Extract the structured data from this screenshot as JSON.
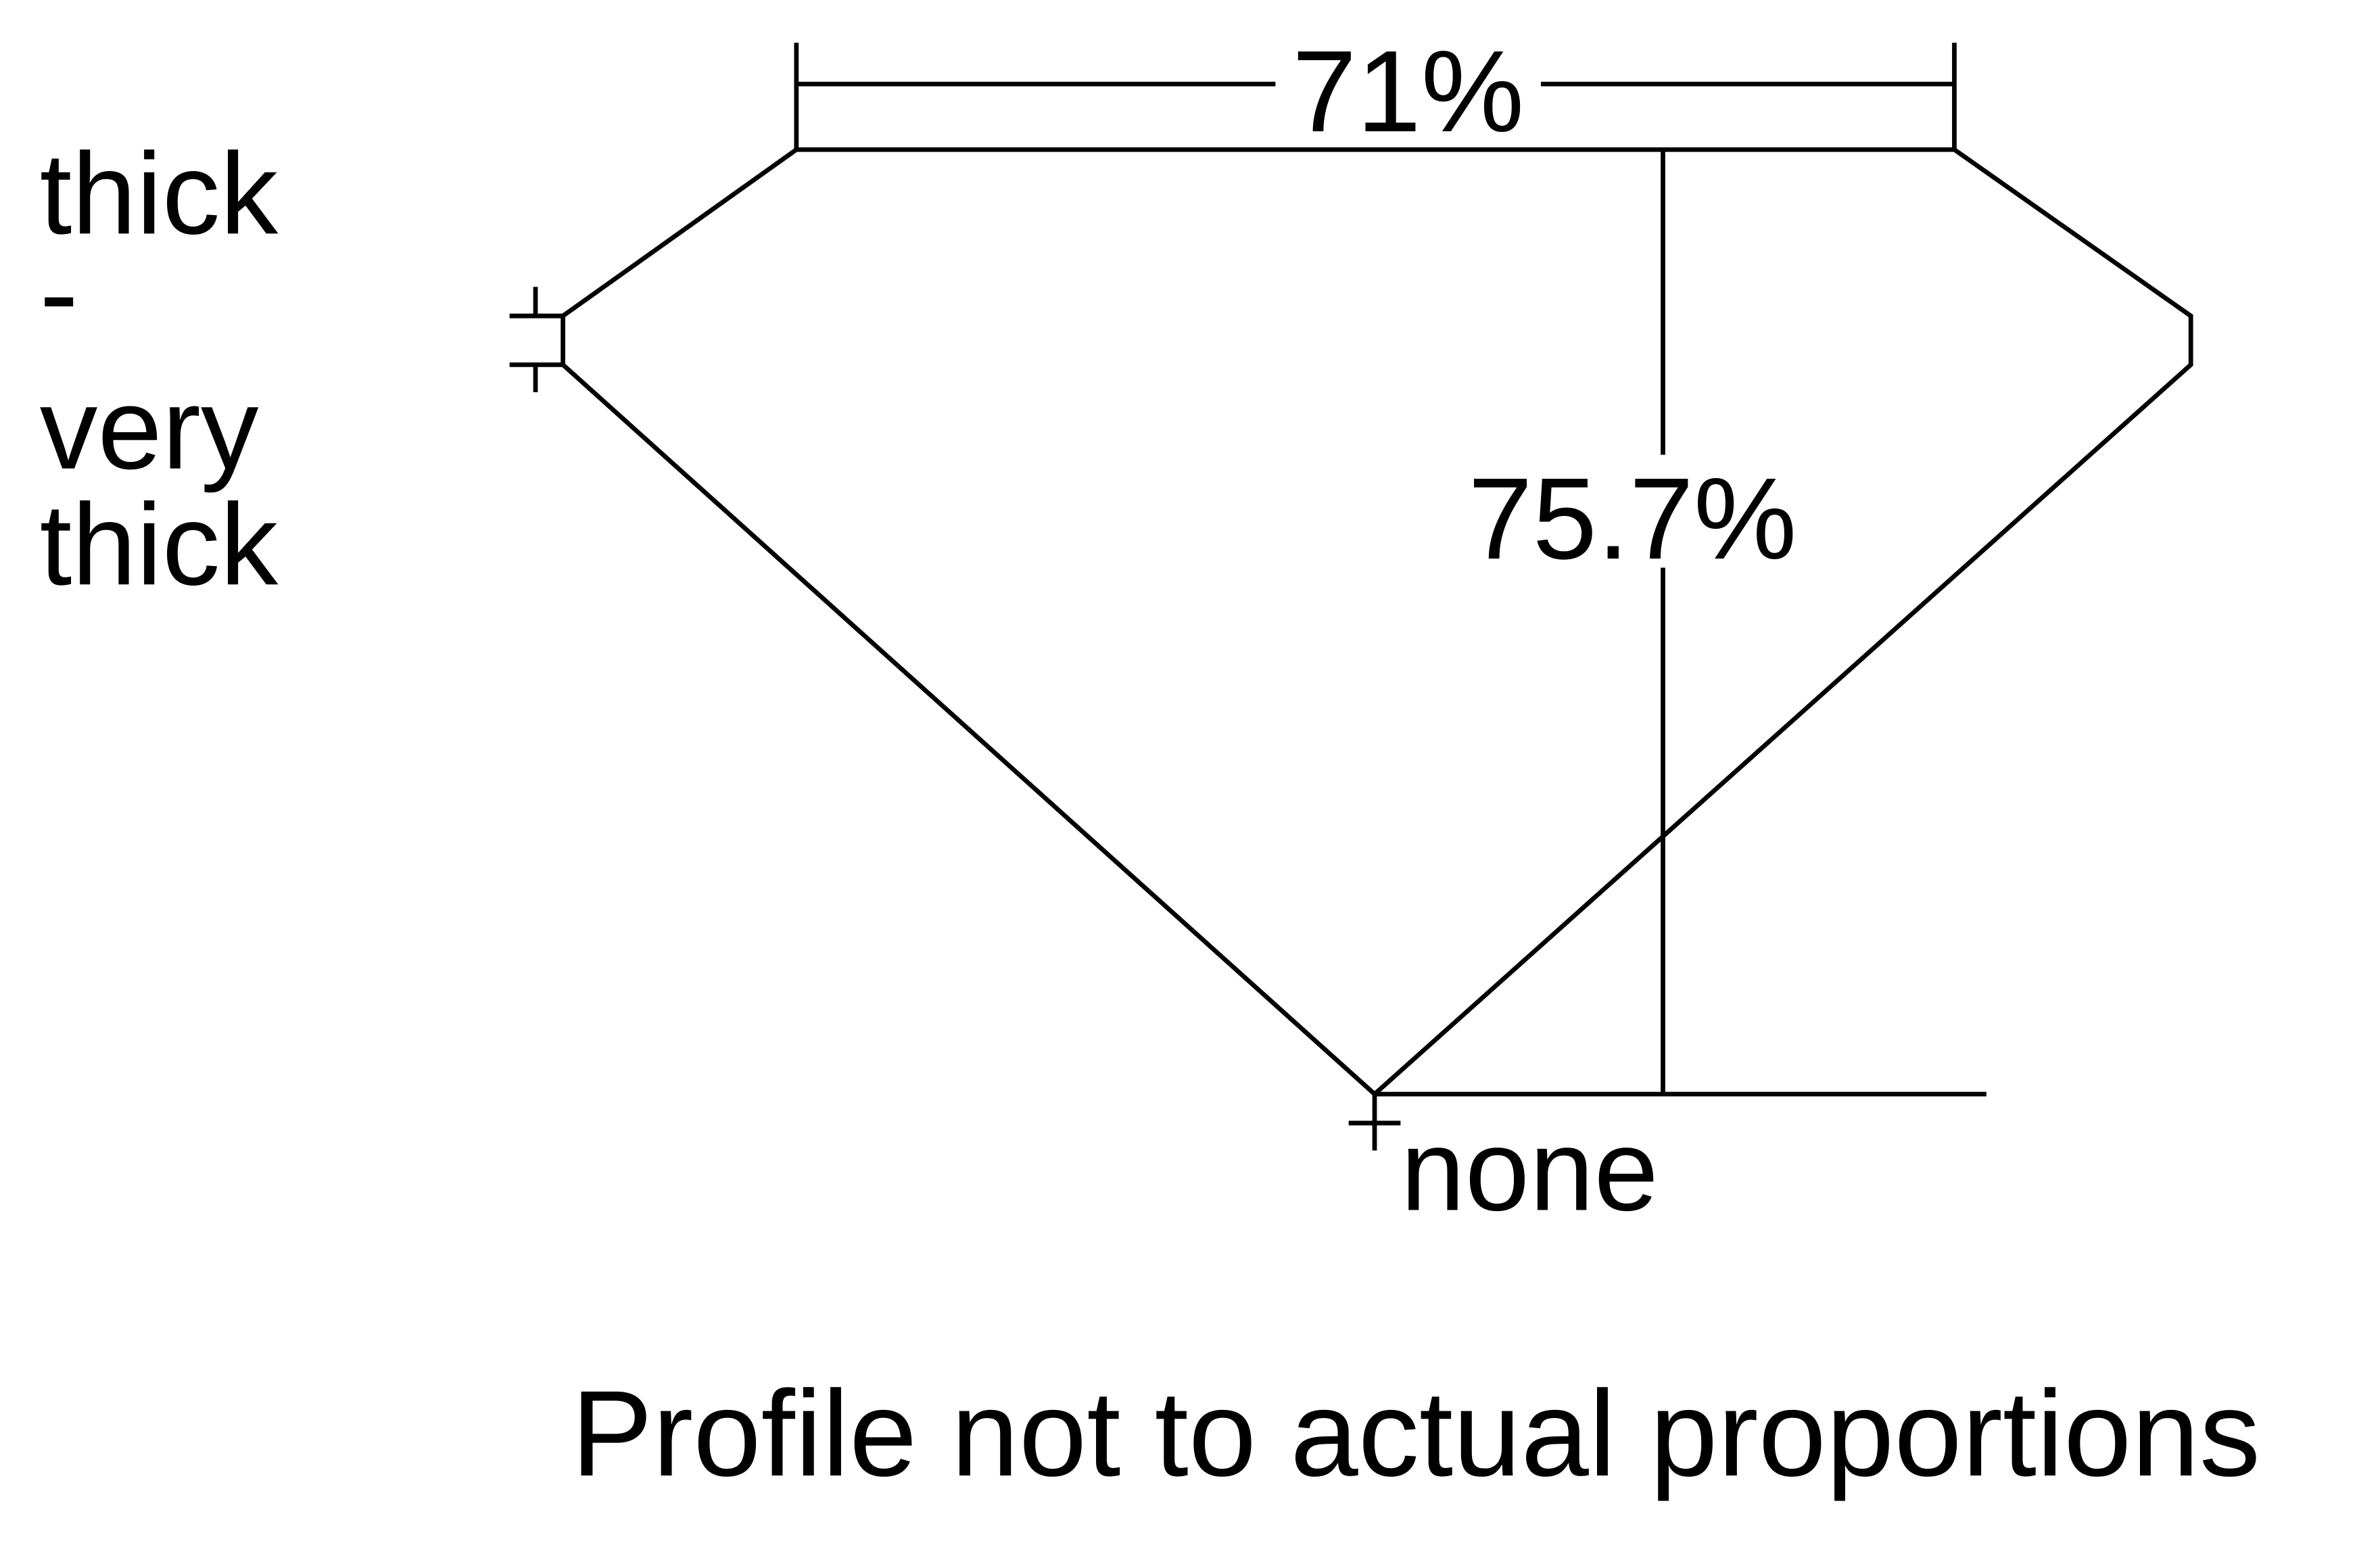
{
  "labels": {
    "width_pct": "71%",
    "height_pct": "75.7%",
    "girdle_line1": "thick",
    "girdle_line2": "-",
    "girdle_line3": "very",
    "girdle_line4": "thick",
    "culet": "none",
    "caption": "Profile not to actual proportions"
  },
  "colors": {
    "line": "#000000",
    "background": "#ffffff"
  }
}
